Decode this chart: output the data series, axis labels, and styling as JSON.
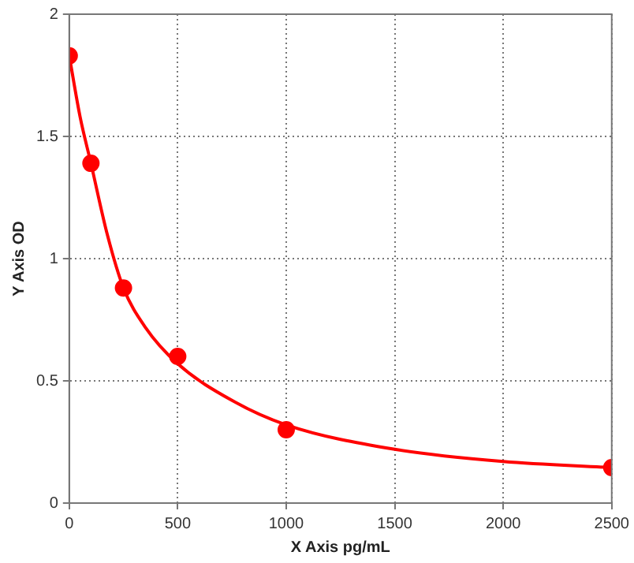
{
  "chart_data": {
    "type": "scatter",
    "xlabel": "X Axis pg/mL",
    "ylabel": "Y Axis OD",
    "series": [
      {
        "type": "line",
        "color": "#ff0000",
        "marker": "none",
        "x": [
          0,
          50,
          100,
          175,
          250,
          350,
          500,
          750,
          1000,
          1500,
          2000,
          2500
        ],
        "values": [
          1.83,
          1.58,
          1.39,
          1.1,
          0.88,
          0.72,
          0.57,
          0.42,
          0.32,
          0.22,
          0.17,
          0.145
        ]
      },
      {
        "color": "#ff0000",
        "marker": "circle",
        "x": [
          0,
          100,
          250,
          500,
          1000,
          2500
        ],
        "values": [
          1.83,
          1.39,
          0.88,
          0.6,
          0.3,
          0.145
        ]
      }
    ],
    "xlim": [
      0,
      2500
    ],
    "xticks": [
      0,
      500,
      1000,
      1500,
      2000,
      2500
    ],
    "ylim": [
      0,
      2
    ],
    "yticks": [
      0,
      0.5,
      1,
      1.5,
      2
    ],
    "grid": true,
    "legend": false
  }
}
